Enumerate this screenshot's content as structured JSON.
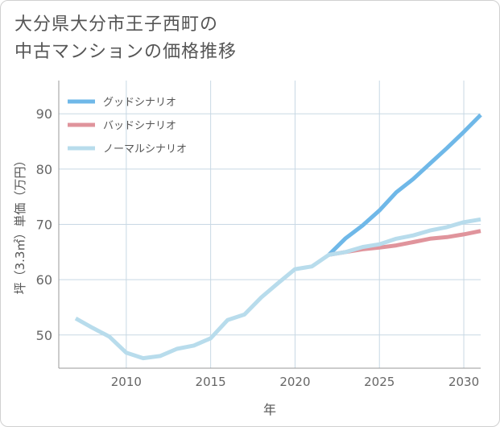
{
  "title_lines": [
    "大分県大分市王子西町の",
    "中古マンションの価格推移"
  ],
  "chart_data": {
    "type": "line",
    "title": "大分県大分市王子西町の中古マンションの価格推移",
    "xlabel": "年",
    "ylabel": "坪（3.3㎡）単価（万円）",
    "xlim": [
      2006,
      2031
    ],
    "ylim": [
      44,
      96
    ],
    "xticks": [
      2010,
      2015,
      2020,
      2025,
      2030
    ],
    "yticks": [
      50,
      60,
      70,
      80,
      90
    ],
    "grid": true,
    "legend_position": "top-left",
    "series": [
      {
        "name": "グッドシナリオ",
        "color": "#6fb8e8",
        "x": [
          2022,
          2023,
          2024,
          2025,
          2026,
          2027,
          2028,
          2029,
          2030,
          2031
        ],
        "values": [
          64.5,
          67.5,
          69.8,
          72.5,
          75.8,
          78.2,
          81.0,
          83.8,
          86.7,
          89.8
        ]
      },
      {
        "name": "バッドシナリオ",
        "color": "#e0949c",
        "x": [
          2022,
          2023,
          2024,
          2025,
          2026,
          2027,
          2028,
          2029,
          2030,
          2031
        ],
        "values": [
          64.5,
          65.0,
          65.5,
          65.8,
          66.2,
          66.8,
          67.4,
          67.7,
          68.2,
          68.8
        ]
      },
      {
        "name": "ノーマルシナリオ",
        "color": "#b8dcec",
        "x": [
          2007,
          2008,
          2009,
          2010,
          2011,
          2012,
          2013,
          2014,
          2015,
          2016,
          2017,
          2018,
          2019,
          2020,
          2021,
          2022,
          2023,
          2024,
          2025,
          2026,
          2027,
          2028,
          2029,
          2030,
          2031
        ],
        "values": [
          53.0,
          51.3,
          49.7,
          46.8,
          45.8,
          46.2,
          47.5,
          48.1,
          49.4,
          52.7,
          53.7,
          56.8,
          59.4,
          61.9,
          62.4,
          64.5,
          65.0,
          65.9,
          66.4,
          67.4,
          68.0,
          68.9,
          69.5,
          70.4,
          70.9
        ]
      }
    ]
  }
}
